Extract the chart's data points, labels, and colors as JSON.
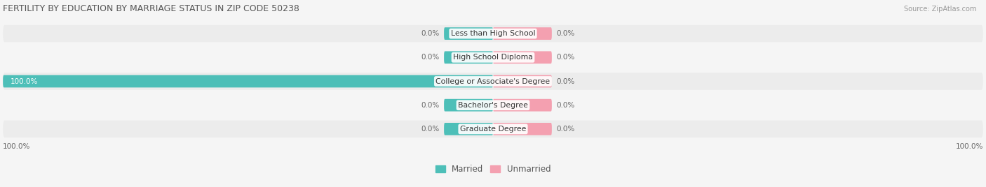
{
  "title": "FERTILITY BY EDUCATION BY MARRIAGE STATUS IN ZIP CODE 50238",
  "source": "Source: ZipAtlas.com",
  "categories": [
    "Less than High School",
    "High School Diploma",
    "College or Associate's Degree",
    "Bachelor's Degree",
    "Graduate Degree"
  ],
  "married_values": [
    0.0,
    0.0,
    100.0,
    0.0,
    0.0
  ],
  "unmarried_values": [
    0.0,
    0.0,
    0.0,
    0.0,
    0.0
  ],
  "married_color": "#4DBFB8",
  "unmarried_color": "#F4A0B0",
  "row_bg_color_even": "#ECECEC",
  "row_bg_color_odd": "#F5F5F5",
  "fig_bg_color": "#F5F5F5",
  "label_color": "#666666",
  "title_color": "#555555",
  "source_color": "#999999",
  "white_text_color": "#FFFFFF",
  "dark_label_color": "#444444",
  "figsize": [
    14.06,
    2.68
  ],
  "dpi": 100,
  "bottom_left_label": "100.0%",
  "bottom_right_label": "100.0%",
  "xlim": 100,
  "stub_size": 10,
  "unmarried_stub_size": 12
}
